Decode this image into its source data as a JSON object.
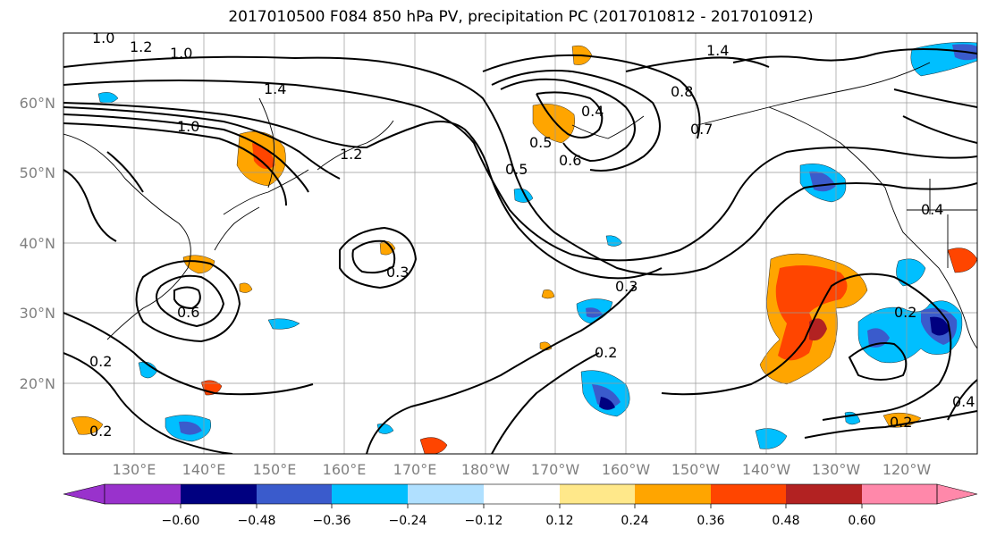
{
  "title": "2017010500 F084 850 hPa PV, precipitation PC (2017010812 - 2017010912)",
  "lat_labels": [
    "60°N",
    "50°N",
    "40°N",
    "30°N",
    "20°N"
  ],
  "lon_labels": [
    "130°E",
    "140°E",
    "150°E",
    "160°E",
    "170°E",
    "180°W",
    "170°W",
    "160°W",
    "150°W",
    "140°W",
    "130°W",
    "120°W"
  ],
  "contour_labels": [
    "1.0",
    "1.2",
    "1.0",
    "1.4",
    "1.0",
    "1.2",
    "0.6",
    "0.5",
    "0.4",
    "0.5",
    "0.3",
    "0.3",
    "0.6",
    "0.2",
    "0.2",
    "0.4",
    "0.7",
    "1.4",
    "0.8",
    "0.2",
    "0.2",
    "0.4",
    "0.2"
  ],
  "colorbar": {
    "ticks": [
      "−0.60",
      "−0.48",
      "−0.36",
      "−0.24",
      "−0.12",
      "0.12",
      "0.24",
      "0.36",
      "0.48",
      "0.60"
    ],
    "colors": [
      "#9932cc",
      "#000080",
      "#3a5bcc",
      "#00bfff",
      "#b0e0ff",
      "#ffffff",
      "#ffe88a",
      "#ffa500",
      "#ff4500",
      "#b22222",
      "#ff88aa"
    ]
  },
  "shading_colors": {
    "pos1": "#ffe88a",
    "pos2": "#ffa500",
    "pos3": "#ff4500",
    "pos4": "#b22222",
    "neg1": "#b0e0ff",
    "neg2": "#00bfff",
    "neg3": "#3a5bcc",
    "neg4": "#000080"
  }
}
